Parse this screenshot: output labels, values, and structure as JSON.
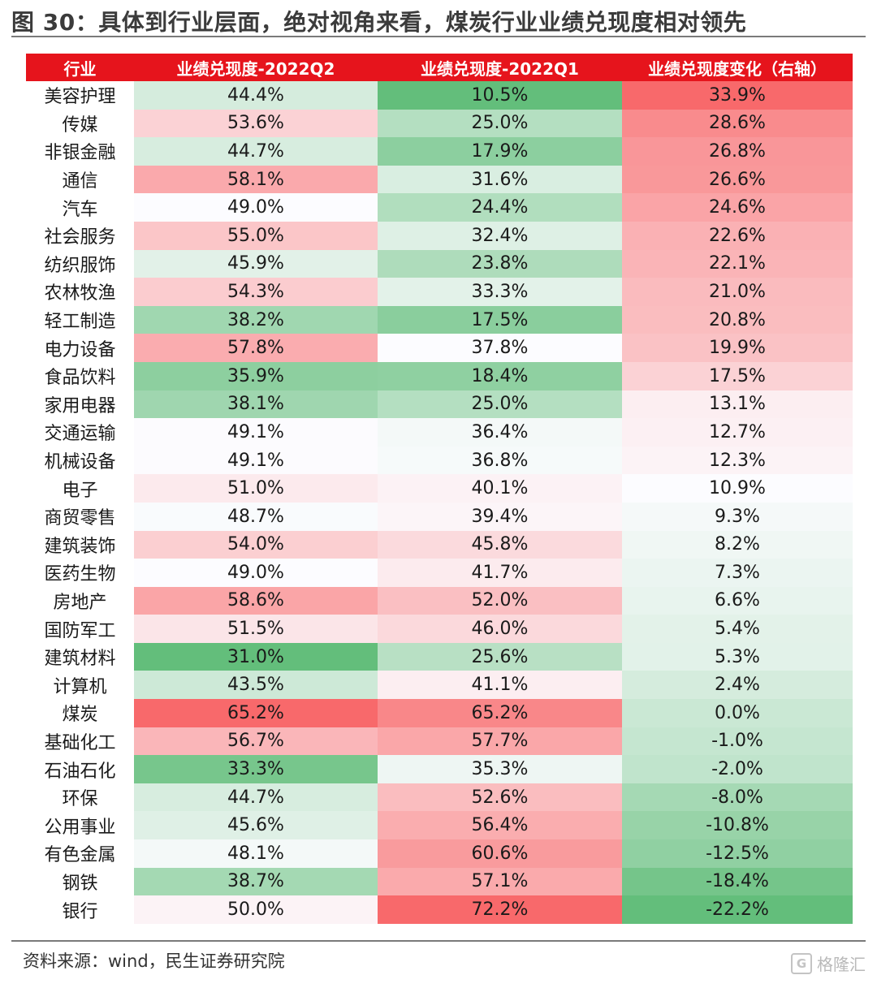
{
  "title": "图 30：具体到行业层面，绝对视角来看，煤炭行业业绩兑现度相对领先",
  "headers": [
    "行业",
    "业绩兑现度-2022Q2",
    "业绩兑现度-2022Q1",
    "业绩兑现度变化（右轴）"
  ],
  "rows": [
    {
      "industry": "美容护理",
      "q2": "44.4%",
      "q1": "10.5%",
      "chg": "33.9%"
    },
    {
      "industry": "传媒",
      "q2": "53.6%",
      "q1": "25.0%",
      "chg": "28.6%"
    },
    {
      "industry": "非银金融",
      "q2": "44.7%",
      "q1": "17.9%",
      "chg": "26.8%"
    },
    {
      "industry": "通信",
      "q2": "58.1%",
      "q1": "31.6%",
      "chg": "26.6%"
    },
    {
      "industry": "汽车",
      "q2": "49.0%",
      "q1": "24.4%",
      "chg": "24.6%"
    },
    {
      "industry": "社会服务",
      "q2": "55.0%",
      "q1": "32.4%",
      "chg": "22.6%"
    },
    {
      "industry": "纺织服饰",
      "q2": "45.9%",
      "q1": "23.8%",
      "chg": "22.1%"
    },
    {
      "industry": "农林牧渔",
      "q2": "54.3%",
      "q1": "33.3%",
      "chg": "21.0%"
    },
    {
      "industry": "轻工制造",
      "q2": "38.2%",
      "q1": "17.5%",
      "chg": "20.8%"
    },
    {
      "industry": "电力设备",
      "q2": "57.8%",
      "q1": "37.8%",
      "chg": "19.9%"
    },
    {
      "industry": "食品饮料",
      "q2": "35.9%",
      "q1": "18.4%",
      "chg": "17.5%"
    },
    {
      "industry": "家用电器",
      "q2": "38.1%",
      "q1": "25.0%",
      "chg": "13.1%"
    },
    {
      "industry": "交通运输",
      "q2": "49.1%",
      "q1": "36.4%",
      "chg": "12.7%"
    },
    {
      "industry": "机械设备",
      "q2": "49.1%",
      "q1": "36.8%",
      "chg": "12.3%"
    },
    {
      "industry": "电子",
      "q2": "51.0%",
      "q1": "40.1%",
      "chg": "10.9%"
    },
    {
      "industry": "商贸零售",
      "q2": "48.7%",
      "q1": "39.4%",
      "chg": "9.3%"
    },
    {
      "industry": "建筑装饰",
      "q2": "54.0%",
      "q1": "45.8%",
      "chg": "8.2%"
    },
    {
      "industry": "医药生物",
      "q2": "49.0%",
      "q1": "41.7%",
      "chg": "7.3%"
    },
    {
      "industry": "房地产",
      "q2": "58.6%",
      "q1": "52.0%",
      "chg": "6.6%"
    },
    {
      "industry": "国防军工",
      "q2": "51.5%",
      "q1": "46.0%",
      "chg": "5.4%"
    },
    {
      "industry": "建筑材料",
      "q2": "31.0%",
      "q1": "25.6%",
      "chg": "5.3%"
    },
    {
      "industry": "计算机",
      "q2": "43.5%",
      "q1": "41.1%",
      "chg": "2.4%"
    },
    {
      "industry": "煤炭",
      "q2": "65.2%",
      "q1": "65.2%",
      "chg": "0.0%"
    },
    {
      "industry": "基础化工",
      "q2": "56.7%",
      "q1": "57.7%",
      "chg": "-1.0%"
    },
    {
      "industry": "石油石化",
      "q2": "33.3%",
      "q1": "35.3%",
      "chg": "-2.0%"
    },
    {
      "industry": "环保",
      "q2": "44.7%",
      "q1": "52.6%",
      "chg": "-8.0%"
    },
    {
      "industry": "公用事业",
      "q2": "45.6%",
      "q1": "56.4%",
      "chg": "-10.8%"
    },
    {
      "industry": "有色金属",
      "q2": "48.1%",
      "q1": "60.6%",
      "chg": "-12.5%"
    },
    {
      "industry": "钢铁",
      "q2": "38.7%",
      "q1": "57.1%",
      "chg": "-18.4%"
    },
    {
      "industry": "银行",
      "q2": "50.0%",
      "q1": "72.2%",
      "chg": "-22.2%"
    }
  ],
  "colors": {
    "header_bg": "#e6141c",
    "high": "#f8696b",
    "mid": "#fcfcff",
    "low": "#63be7b"
  },
  "source": "资料来源：wind，民生证券研究院",
  "watermark": "格隆汇"
}
